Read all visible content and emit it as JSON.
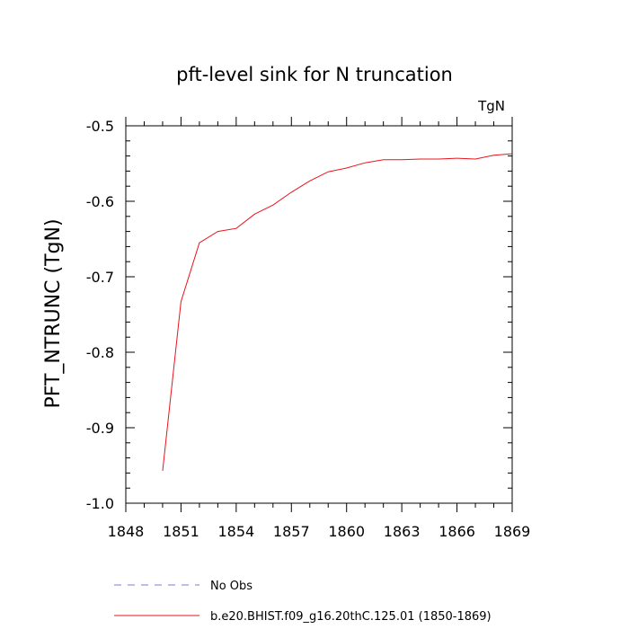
{
  "chart_data": {
    "type": "line",
    "title": "pft-level sink for N truncation",
    "units_label": "TgN",
    "ylabel": "PFT_NTRUNC  (TgN)",
    "xlabel": "",
    "xlim": [
      1848,
      1869
    ],
    "ylim": [
      -1.0,
      -0.5
    ],
    "x_ticks": [
      1848,
      1851,
      1854,
      1857,
      1860,
      1863,
      1866,
      1869
    ],
    "y_ticks": [
      -0.5,
      -0.6,
      -0.7,
      -0.8,
      -0.9,
      -1.0
    ],
    "y_tick_labels": [
      "-0.5",
      "-0.6",
      "-0.7",
      "-0.8",
      "-0.9",
      "-1.0"
    ],
    "grid": false,
    "series": [
      {
        "name": "b.e20.BHIST.f09_g16.20thC.125.01 (1850-1869)",
        "color": "#e8141c",
        "x": [
          1850,
          1851,
          1852,
          1853,
          1854,
          1855,
          1856,
          1857,
          1858,
          1859,
          1860,
          1861,
          1862,
          1863,
          1864,
          1865,
          1866,
          1867,
          1868,
          1869
        ],
        "y": [
          -0.957,
          -0.733,
          -0.655,
          -0.64,
          -0.636,
          -0.617,
          -0.605,
          -0.588,
          -0.573,
          -0.561,
          -0.556,
          -0.549,
          -0.545,
          -0.545,
          -0.544,
          -0.544,
          -0.543,
          -0.544,
          -0.539,
          -0.537
        ]
      }
    ],
    "legend": {
      "placement": "bottom",
      "entries": [
        {
          "label": "No Obs",
          "color": "#7b7bd6",
          "style": "dashed"
        },
        {
          "label": "b.e20.BHIST.f09_g16.20thC.125.01 (1850-1869)",
          "color": "#e8141c",
          "style": "solid"
        }
      ]
    }
  }
}
